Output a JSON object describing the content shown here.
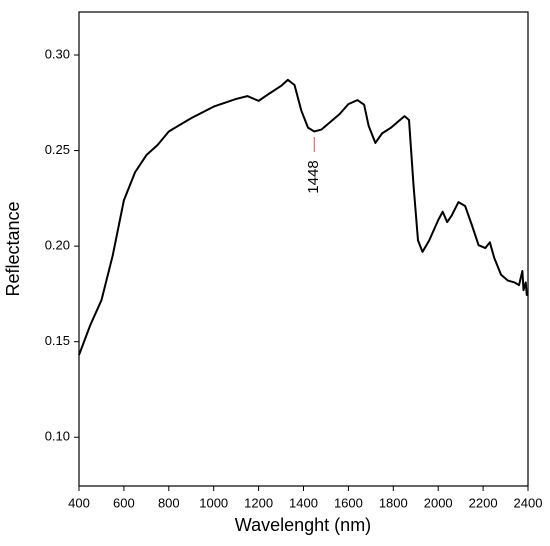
{
  "chart_data": {
    "type": "line",
    "xlabel": "Wavelenght (nm)",
    "ylabel": "Reflectance",
    "x": [
      400,
      450,
      500,
      550,
      600,
      650,
      700,
      750,
      800,
      900,
      1000,
      1100,
      1150,
      1200,
      1250,
      1300,
      1330,
      1360,
      1390,
      1420,
      1448,
      1480,
      1520,
      1560,
      1600,
      1640,
      1670,
      1690,
      1720,
      1750,
      1790,
      1820,
      1850,
      1870,
      1890,
      1910,
      1930,
      1960,
      2000,
      2020,
      2040,
      2060,
      2090,
      2120,
      2150,
      2180,
      2210,
      2230,
      2250,
      2280,
      2310,
      2340,
      2360,
      2375,
      2380,
      2390,
      2395
    ],
    "series": [
      {
        "name": "Reflectance",
        "color": "#000000",
        "values": [
          0.143,
          0.1586,
          0.1717,
          0.195,
          0.224,
          0.2387,
          0.2476,
          0.2529,
          0.26,
          0.267,
          0.273,
          0.277,
          0.2785,
          0.276,
          0.28,
          0.2838,
          0.287,
          0.2843,
          0.271,
          0.262,
          0.26,
          0.261,
          0.265,
          0.269,
          0.2743,
          0.2764,
          0.274,
          0.263,
          0.254,
          0.259,
          0.262,
          0.265,
          0.268,
          0.266,
          0.232,
          0.203,
          0.197,
          0.203,
          0.2136,
          0.218,
          0.2126,
          0.216,
          0.223,
          0.221,
          0.211,
          0.2005,
          0.199,
          0.202,
          0.1937,
          0.185,
          0.182,
          0.181,
          0.1796,
          0.187,
          0.177,
          0.181,
          0.174
        ]
      }
    ],
    "xlim": [
      400,
      2400
    ],
    "ylim": [
      0.0745,
      0.3225
    ],
    "xticks": [
      400,
      600,
      800,
      1000,
      1200,
      1400,
      1600,
      1800,
      2000,
      2200,
      2400
    ],
    "yticks": [
      {
        "value": 0.1,
        "label": "0.10"
      },
      {
        "value": 0.15,
        "label": "0.15"
      },
      {
        "value": 0.2,
        "label": "0.20"
      },
      {
        "value": 0.25,
        "label": "0.25"
      },
      {
        "value": 0.3,
        "label": "0.30"
      }
    ],
    "annotations": [
      {
        "x": 1448,
        "color": "#e05060"
      }
    ],
    "grid": false
  }
}
